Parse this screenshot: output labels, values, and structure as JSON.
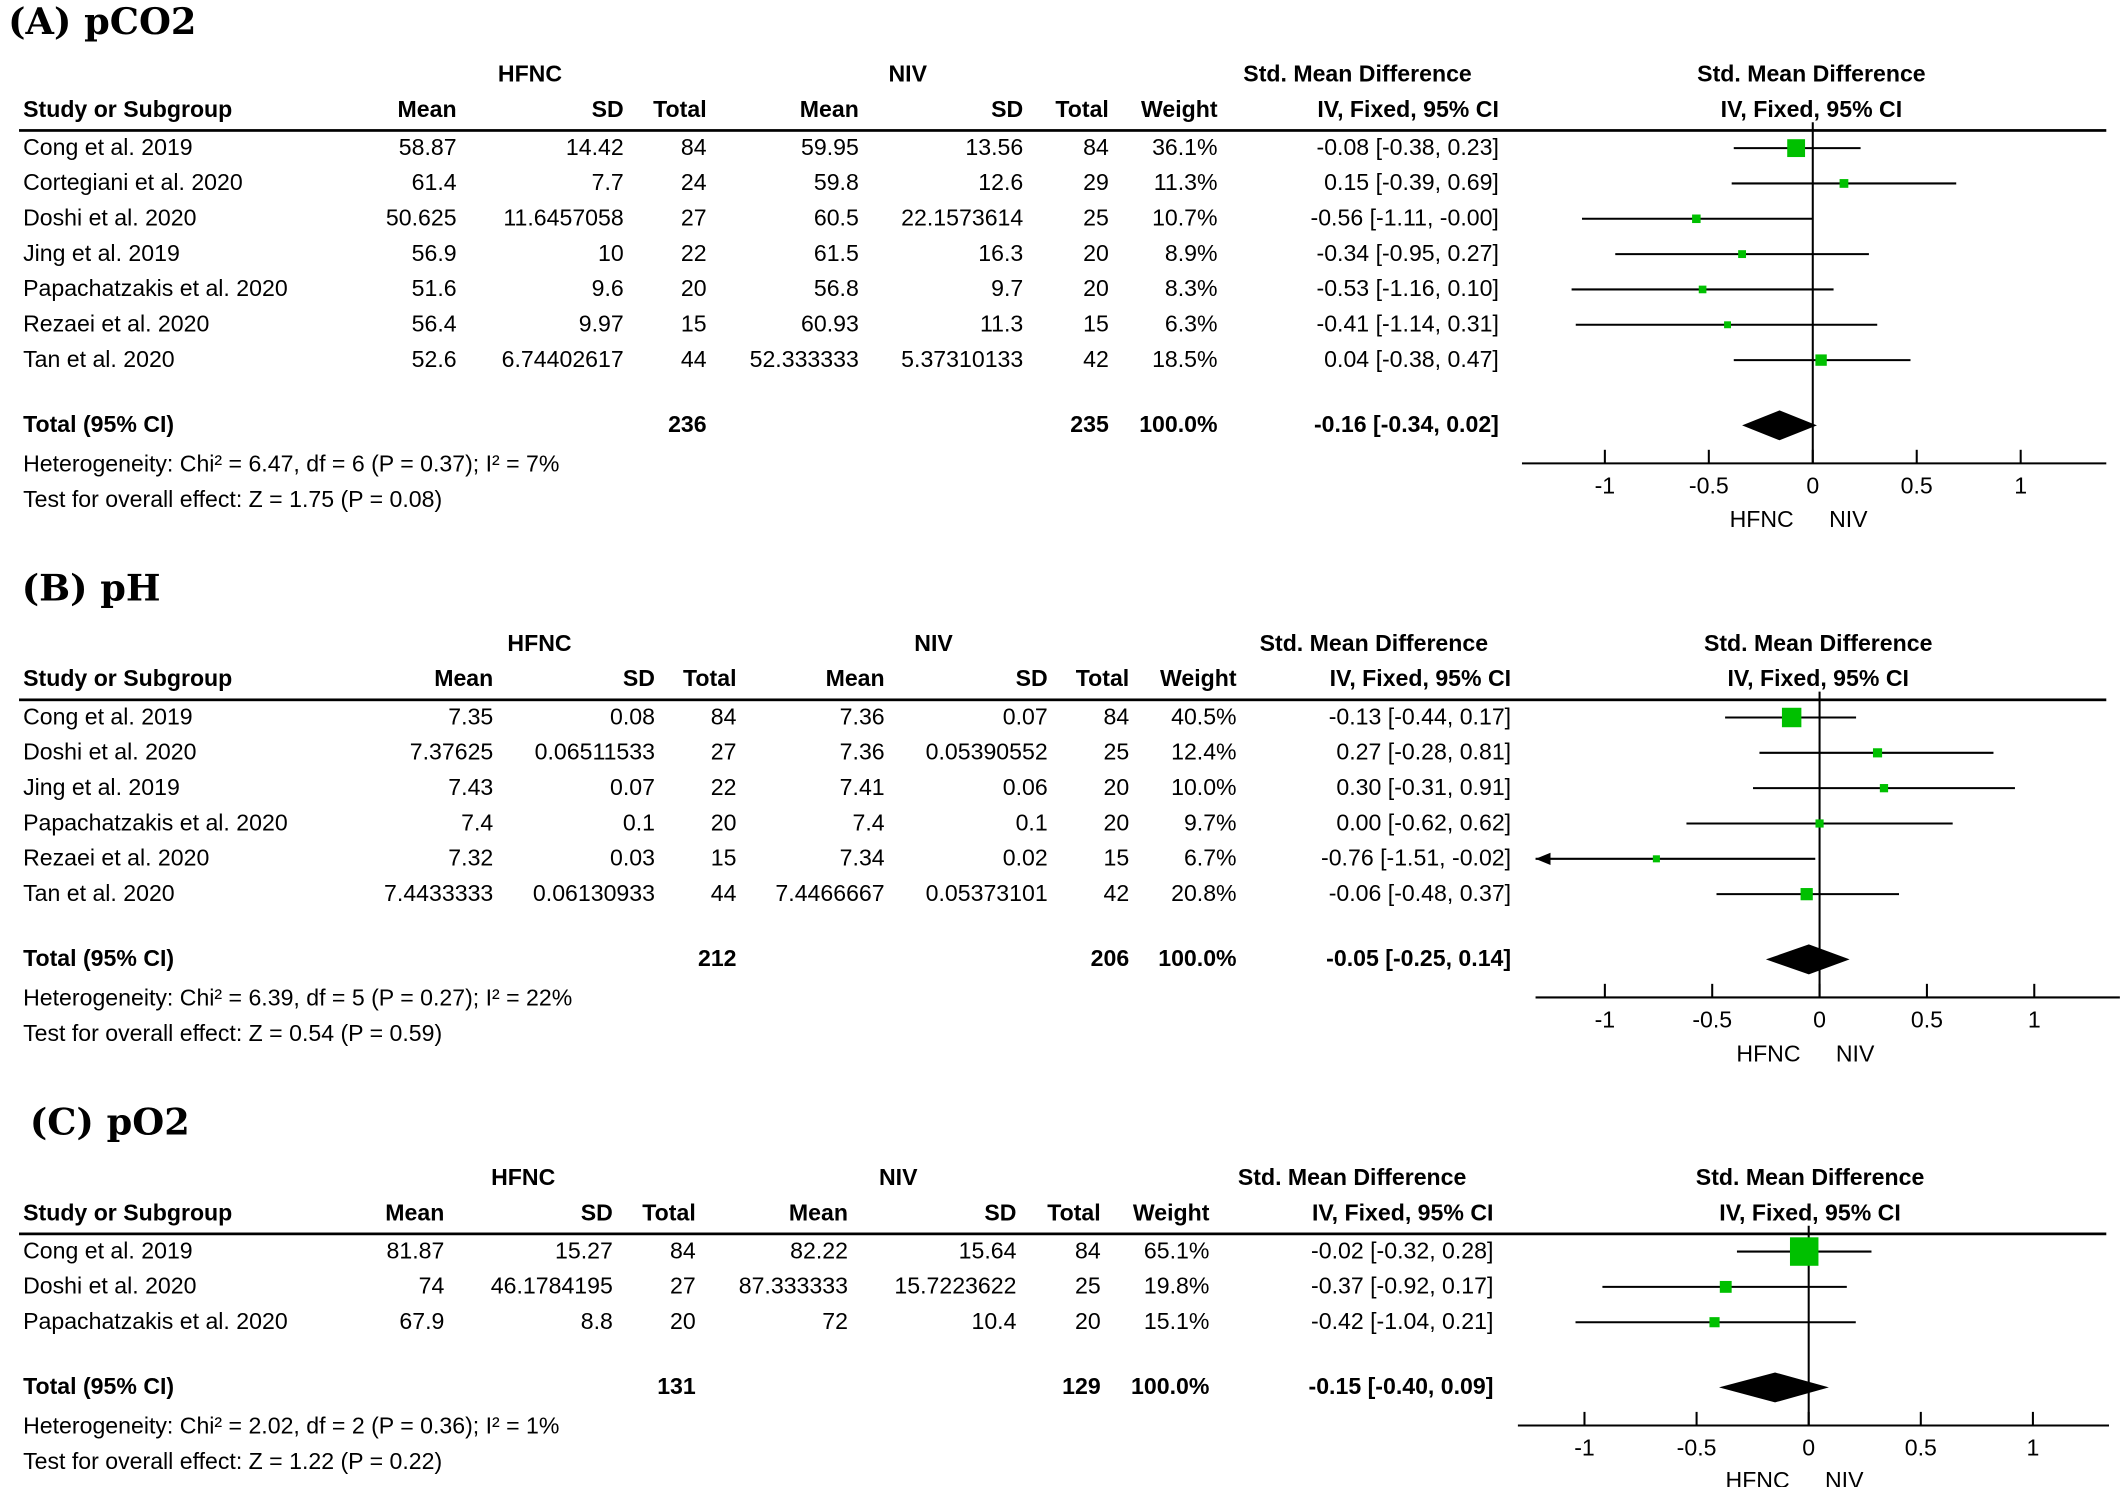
{
  "panels": [
    {
      "title": "(A) pCO2",
      "group1": "HFNC",
      "group2": "NIV",
      "smd_header_table": "Std. Mean Difference",
      "method_header_table": "IV, Fixed, 95% CI",
      "smd_header_plot": "Std. Mean Difference",
      "method_header_plot": "IV, Fixed, 95% CI",
      "col_headers": {
        "study": "Study or Subgroup",
        "mean1": "Mean",
        "sd1": "SD",
        "total1": "Total",
        "mean2": "Mean",
        "sd2": "SD",
        "total2": "Total",
        "weight": "Weight"
      },
      "rows": [
        {
          "study": "Cong et al. 2019",
          "mean1": "58.87",
          "sd1": "14.42",
          "total1": "84",
          "mean2": "59.95",
          "sd2": "13.56",
          "total2": "84",
          "weight": "36.1%",
          "ci": "-0.08 [-0.38, 0.23]"
        },
        {
          "study": "Cortegiani et al. 2020",
          "mean1": "61.4",
          "sd1": "7.7",
          "total1": "24",
          "mean2": "59.8",
          "sd2": "12.6",
          "total2": "29",
          "weight": "11.3%",
          "ci": "0.15 [-0.39, 0.69]"
        },
        {
          "study": "Doshi et al. 2020",
          "mean1": "50.625",
          "sd1": "11.6457058",
          "total1": "27",
          "mean2": "60.5",
          "sd2": "22.1573614",
          "total2": "25",
          "weight": "10.7%",
          "ci": "-0.56 [-1.11, -0.00]"
        },
        {
          "study": "Jing et al. 2019",
          "mean1": "56.9",
          "sd1": "10",
          "total1": "22",
          "mean2": "61.5",
          "sd2": "16.3",
          "total2": "20",
          "weight": "8.9%",
          "ci": "-0.34 [-0.95, 0.27]"
        },
        {
          "study": "Papachatzakis et al. 2020",
          "mean1": "51.6",
          "sd1": "9.6",
          "total1": "20",
          "mean2": "56.8",
          "sd2": "9.7",
          "total2": "20",
          "weight": "8.3%",
          "ci": "-0.53 [-1.16, 0.10]"
        },
        {
          "study": "Rezaei et al. 2020",
          "mean1": "56.4",
          "sd1": "9.97",
          "total1": "15",
          "mean2": "60.93",
          "sd2": "11.3",
          "total2": "15",
          "weight": "6.3%",
          "ci": "-0.41 [-1.14, 0.31]"
        },
        {
          "study": "Tan et al. 2020",
          "mean1": "52.6",
          "sd1": "6.74402617",
          "total1": "44",
          "mean2": "52.333333",
          "sd2": "5.37310133",
          "total2": "42",
          "weight": "18.5%",
          "ci": "0.04 [-0.38, 0.47]"
        }
      ],
      "total": {
        "label": "Total (95% CI)",
        "total1": "236",
        "total2": "235",
        "weight": "100.0%",
        "ci": "-0.16 [-0.34, 0.02]"
      },
      "heterogeneity": "Heterogeneity: Chi² = 6.47, df = 6 (P = 0.37); I² = 7%",
      "overall": "Test for overall effect: Z = 1.75 (P = 0.08)",
      "favours_left": "HFNC",
      "favours_right": "NIV",
      "ticks": [
        "-1",
        "-0.5",
        "0",
        "0.5",
        "1"
      ]
    },
    {
      "title": "(B) pH",
      "group1": "HFNC",
      "group2": "NIV",
      "smd_header_table": "Std. Mean Difference",
      "method_header_table": "IV, Fixed, 95% CI",
      "smd_header_plot": "Std. Mean Difference",
      "method_header_plot": "IV, Fixed, 95% CI",
      "col_headers": {
        "study": "Study or Subgroup",
        "mean1": "Mean",
        "sd1": "SD",
        "total1": "Total",
        "mean2": "Mean",
        "sd2": "SD",
        "total2": "Total",
        "weight": "Weight"
      },
      "rows": [
        {
          "study": "Cong et al. 2019",
          "mean1": "7.35",
          "sd1": "0.08",
          "total1": "84",
          "mean2": "7.36",
          "sd2": "0.07",
          "total2": "84",
          "weight": "40.5%",
          "ci": "-0.13 [-0.44, 0.17]"
        },
        {
          "study": "Doshi et al. 2020",
          "mean1": "7.37625",
          "sd1": "0.06511533",
          "total1": "27",
          "mean2": "7.36",
          "sd2": "0.05390552",
          "total2": "25",
          "weight": "12.4%",
          "ci": "0.27 [-0.28, 0.81]"
        },
        {
          "study": "Jing et al. 2019",
          "mean1": "7.43",
          "sd1": "0.07",
          "total1": "22",
          "mean2": "7.41",
          "sd2": "0.06",
          "total2": "20",
          "weight": "10.0%",
          "ci": "0.30 [-0.31, 0.91]"
        },
        {
          "study": "Papachatzakis et al. 2020",
          "mean1": "7.4",
          "sd1": "0.1",
          "total1": "20",
          "mean2": "7.4",
          "sd2": "0.1",
          "total2": "20",
          "weight": "9.7%",
          "ci": "0.00 [-0.62, 0.62]"
        },
        {
          "study": "Rezaei et al. 2020",
          "mean1": "7.32",
          "sd1": "0.03",
          "total1": "15",
          "mean2": "7.34",
          "sd2": "0.02",
          "total2": "15",
          "weight": "6.7%",
          "ci": "-0.76 [-1.51, -0.02]"
        },
        {
          "study": "Tan et al. 2020",
          "mean1": "7.4433333",
          "sd1": "0.06130933",
          "total1": "44",
          "mean2": "7.4466667",
          "sd2": "0.05373101",
          "total2": "42",
          "weight": "20.8%",
          "ci": "-0.06 [-0.48, 0.37]"
        }
      ],
      "total": {
        "label": "Total (95% CI)",
        "total1": "212",
        "total2": "206",
        "weight": "100.0%",
        "ci": "-0.05 [-0.25, 0.14]"
      },
      "heterogeneity": "Heterogeneity: Chi² = 6.39, df = 5 (P = 0.27); I² = 22%",
      "overall": "Test for overall effect: Z = 0.54 (P = 0.59)",
      "favours_left": "HFNC",
      "favours_right": "NIV",
      "ticks": [
        "-1",
        "-0.5",
        "0",
        "0.5",
        "1"
      ]
    },
    {
      "title": "(C) pO2",
      "group1": "HFNC",
      "group2": "NIV",
      "smd_header_table": "Std. Mean Difference",
      "method_header_table": "IV, Fixed, 95% CI",
      "smd_header_plot": "Std. Mean Difference",
      "method_header_plot": "IV, Fixed, 95% CI",
      "col_headers": {
        "study": "Study or Subgroup",
        "mean1": "Mean",
        "sd1": "SD",
        "total1": "Total",
        "mean2": "Mean",
        "sd2": "SD",
        "total2": "Total",
        "weight": "Weight"
      },
      "rows": [
        {
          "study": "Cong et al. 2019",
          "mean1": "81.87",
          "sd1": "15.27",
          "total1": "84",
          "mean2": "82.22",
          "sd2": "15.64",
          "total2": "84",
          "weight": "65.1%",
          "ci": "-0.02 [-0.32, 0.28]"
        },
        {
          "study": "Doshi et al. 2020",
          "mean1": "74",
          "sd1": "46.1784195",
          "total1": "27",
          "mean2": "87.333333",
          "sd2": "15.7223622",
          "total2": "25",
          "weight": "19.8%",
          "ci": "-0.37 [-0.92, 0.17]"
        },
        {
          "study": "Papachatzakis et al. 2020",
          "mean1": "67.9",
          "sd1": "8.8",
          "total1": "20",
          "mean2": "72",
          "sd2": "10.4",
          "total2": "20",
          "weight": "15.1%",
          "ci": "-0.42 [-1.04, 0.21]"
        }
      ],
      "total": {
        "label": "Total (95% CI)",
        "total1": "131",
        "total2": "129",
        "weight": "100.0%",
        "ci": "-0.15 [-0.40, 0.09]"
      },
      "heterogeneity": "Heterogeneity: Chi² = 2.02, df = 2 (P = 0.36); I² = 1%",
      "overall": "Test for overall effect: Z = 1.22 (P = 0.22)",
      "favours_left": "HFNC",
      "favours_right": "NIV",
      "ticks": [
        "-1",
        "-0.5",
        "0",
        "0.5",
        "1"
      ]
    }
  ],
  "colors": {
    "marker": "#00c000",
    "line": "#000000",
    "diamond": "#000000"
  },
  "chart_data": [
    {
      "type": "forest",
      "title": "(A) pCO2",
      "xlim": [
        -1.4,
        1.4
      ],
      "xticks": [
        -1,
        -0.5,
        0,
        0.5,
        1
      ],
      "studies": [
        {
          "name": "Cong et al. 2019",
          "smd": -0.08,
          "lo": -0.38,
          "hi": 0.23,
          "weight": 36.1
        },
        {
          "name": "Cortegiani et al. 2020",
          "smd": 0.15,
          "lo": -0.39,
          "hi": 0.69,
          "weight": 11.3
        },
        {
          "name": "Doshi et al. 2020",
          "smd": -0.56,
          "lo": -1.11,
          "hi": -0.0,
          "weight": 10.7
        },
        {
          "name": "Jing et al. 2019",
          "smd": -0.34,
          "lo": -0.95,
          "hi": 0.27,
          "weight": 8.9
        },
        {
          "name": "Papachatzakis et al. 2020",
          "smd": -0.53,
          "lo": -1.16,
          "hi": 0.1,
          "weight": 8.3
        },
        {
          "name": "Rezaei et al. 2020",
          "smd": -0.41,
          "lo": -1.14,
          "hi": 0.31,
          "weight": 6.3
        },
        {
          "name": "Tan et al. 2020",
          "smd": 0.04,
          "lo": -0.38,
          "hi": 0.47,
          "weight": 18.5
        }
      ],
      "pooled": {
        "smd": -0.16,
        "lo": -0.34,
        "hi": 0.02
      }
    },
    {
      "type": "forest",
      "title": "(B) pH",
      "xlim": [
        -1.4,
        1.4
      ],
      "xticks": [
        -1,
        -0.5,
        0,
        0.5,
        1
      ],
      "studies": [
        {
          "name": "Cong et al. 2019",
          "smd": -0.13,
          "lo": -0.44,
          "hi": 0.17,
          "weight": 40.5
        },
        {
          "name": "Doshi et al. 2020",
          "smd": 0.27,
          "lo": -0.28,
          "hi": 0.81,
          "weight": 12.4
        },
        {
          "name": "Jing et al. 2019",
          "smd": 0.3,
          "lo": -0.31,
          "hi": 0.91,
          "weight": 10.0
        },
        {
          "name": "Papachatzakis et al. 2020",
          "smd": 0.0,
          "lo": -0.62,
          "hi": 0.62,
          "weight": 9.7
        },
        {
          "name": "Rezaei et al. 2020",
          "smd": -0.76,
          "lo": -1.51,
          "hi": -0.02,
          "weight": 6.7
        },
        {
          "name": "Tan et al. 2020",
          "smd": -0.06,
          "lo": -0.48,
          "hi": 0.37,
          "weight": 20.8
        }
      ],
      "pooled": {
        "smd": -0.05,
        "lo": -0.25,
        "hi": 0.14
      }
    },
    {
      "type": "forest",
      "title": "(C) pO2",
      "xlim": [
        -1.4,
        1.4
      ],
      "xticks": [
        -1,
        -0.5,
        0,
        0.5,
        1
      ],
      "studies": [
        {
          "name": "Cong et al. 2019",
          "smd": -0.02,
          "lo": -0.32,
          "hi": 0.28,
          "weight": 65.1
        },
        {
          "name": "Doshi et al. 2020",
          "smd": -0.37,
          "lo": -0.92,
          "hi": 0.17,
          "weight": 19.8
        },
        {
          "name": "Papachatzakis et al. 2020",
          "smd": -0.42,
          "lo": -1.04,
          "hi": 0.21,
          "weight": 15.1
        }
      ],
      "pooled": {
        "smd": -0.15,
        "lo": -0.4,
        "hi": 0.09
      }
    }
  ]
}
